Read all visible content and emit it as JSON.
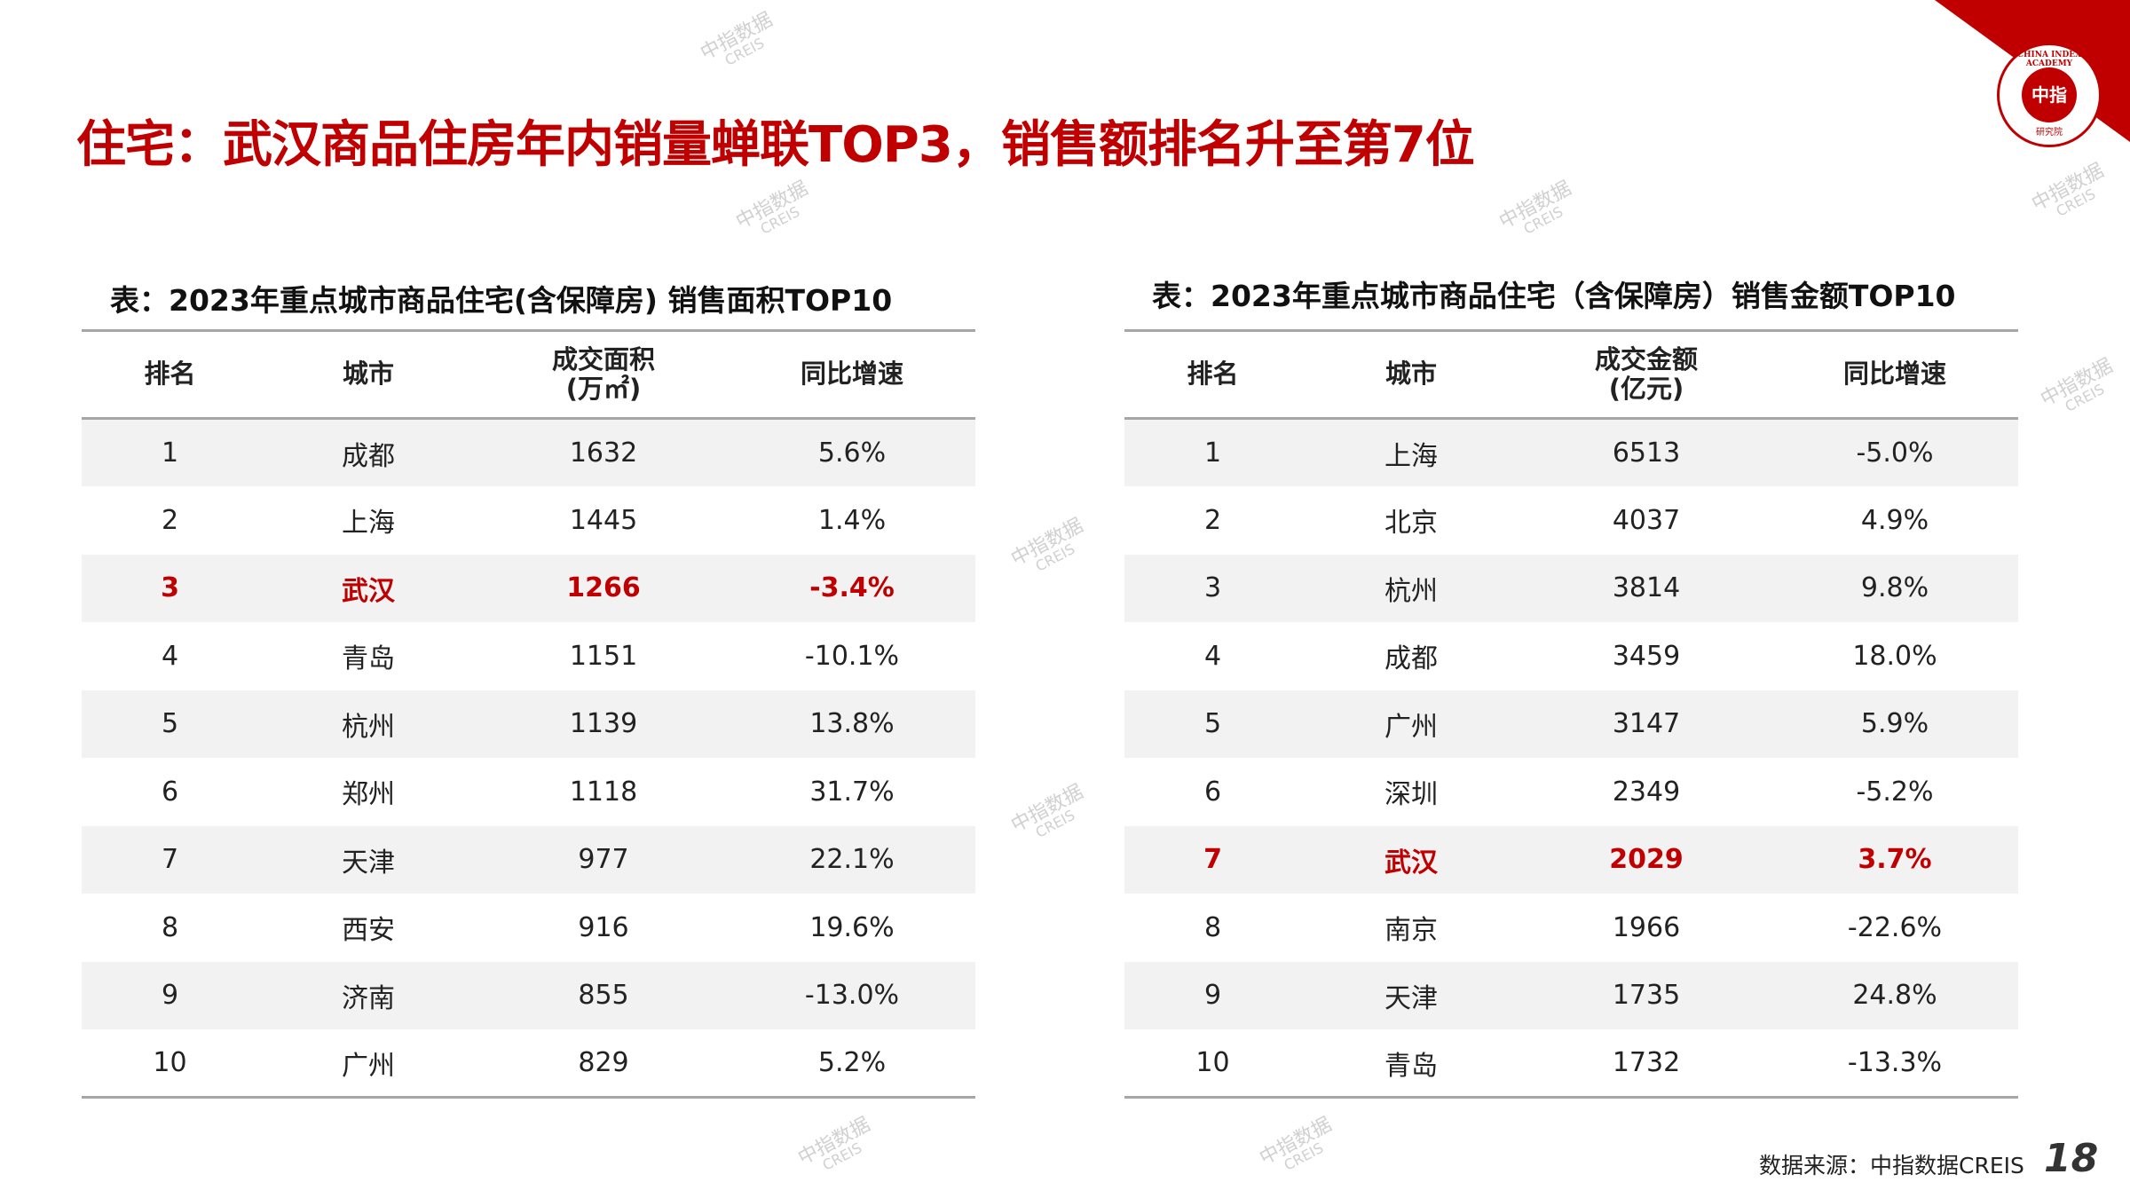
{
  "title": "住宅：武汉商品住房年内销量蝉联TOP3，销售额排名升至第7位",
  "logo": {
    "ring_text": "CHINA INDEX ACADEMY",
    "center_text": "中指",
    "sub_text": "研究院"
  },
  "watermark": {
    "cn": "中指数据",
    "en": "CREIS"
  },
  "accent_color": "#c00000",
  "left_table": {
    "caption": "表：2023年重点城市商品住宅(含保障房) 销售面积TOP10",
    "headers": [
      "排名",
      "城市",
      "成交面积\n(万㎡)",
      "同比增速"
    ],
    "rows": [
      [
        "1",
        "成都",
        "1632",
        "5.6%"
      ],
      [
        "2",
        "上海",
        "1445",
        "1.4%"
      ],
      [
        "3",
        "武汉",
        "1266",
        "-3.4%"
      ],
      [
        "4",
        "青岛",
        "1151",
        "-10.1%"
      ],
      [
        "5",
        "杭州",
        "1139",
        "13.8%"
      ],
      [
        "6",
        "郑州",
        "1118",
        "31.7%"
      ],
      [
        "7",
        "天津",
        "977",
        "22.1%"
      ],
      [
        "8",
        "西安",
        "916",
        "19.6%"
      ],
      [
        "9",
        "济南",
        "855",
        "-13.0%"
      ],
      [
        "10",
        "广州",
        "829",
        "5.2%"
      ]
    ],
    "highlight_row": 3
  },
  "right_table": {
    "caption": "表：2023年重点城市商品住宅（含保障房）销售金额TOP10",
    "headers": [
      "排名",
      "城市",
      "成交金额\n(亿元)",
      "同比增速"
    ],
    "rows": [
      [
        "1",
        "上海",
        "6513",
        "-5.0%"
      ],
      [
        "2",
        "北京",
        "4037",
        "4.9%"
      ],
      [
        "3",
        "杭州",
        "3814",
        "9.8%"
      ],
      [
        "4",
        "成都",
        "3459",
        "18.0%"
      ],
      [
        "5",
        "广州",
        "3147",
        "5.9%"
      ],
      [
        "6",
        "深圳",
        "2349",
        "-5.2%"
      ],
      [
        "7",
        "武汉",
        "2029",
        "3.7%"
      ],
      [
        "8",
        "南京",
        "1966",
        "-22.6%"
      ],
      [
        "9",
        "天津",
        "1735",
        "24.8%"
      ],
      [
        "10",
        "青岛",
        "1732",
        "-13.3%"
      ]
    ],
    "highlight_row": 7
  },
  "footer": {
    "source": "数据来源：中指数据CREIS",
    "page_number": "18"
  }
}
